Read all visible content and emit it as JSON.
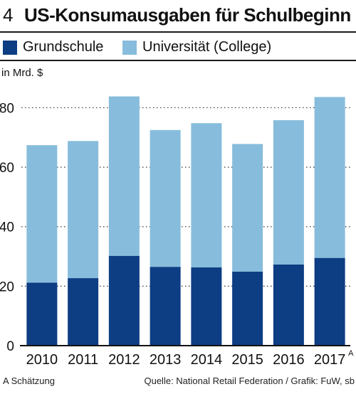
{
  "header": {
    "figure_number": "4",
    "title": "US-Konsumausgaben für Schulbeginn"
  },
  "legend": {
    "items": [
      {
        "label": "Grundschule",
        "color": "#0d3d82"
      },
      {
        "label": "Universität (College)",
        "color": "#87bcdc"
      }
    ]
  },
  "footer": {
    "note": "A Schätzung",
    "source": "Quelle: National Retail Federation / Grafik: FuW, sb"
  },
  "chart_data": {
    "type": "bar",
    "stacked": true,
    "unit_label": "in Mrd. $",
    "categories": [
      "2010",
      "2011",
      "2012",
      "2013",
      "2014",
      "2015",
      "2016",
      "2017"
    ],
    "category_superscripts": {
      "2017": "A"
    },
    "series": [
      {
        "name": "Grundschule",
        "color": "#0d3d82",
        "values": [
          21.2,
          22.7,
          30.2,
          26.5,
          26.3,
          24.9,
          27.3,
          29.5
        ]
      },
      {
        "name": "Universität (College)",
        "color": "#87bcdc",
        "values": [
          46.2,
          46.1,
          53.6,
          46.0,
          48.5,
          42.9,
          48.5,
          54.1
        ]
      }
    ],
    "ylim": [
      0,
      88
    ],
    "yticks": [
      0,
      20,
      40,
      60,
      80
    ],
    "grid": "dotted-horizontal",
    "legend_position": "top"
  }
}
